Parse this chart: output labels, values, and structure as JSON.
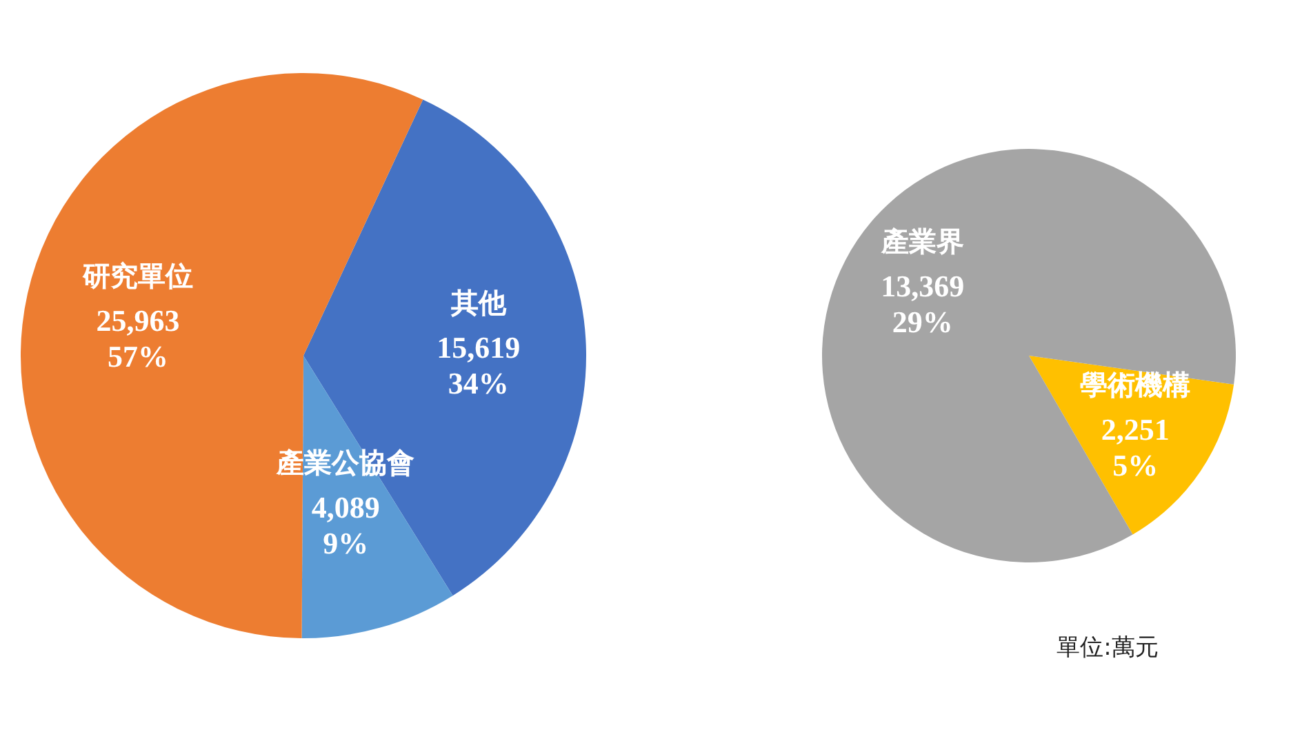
{
  "chart_data": [
    {
      "type": "pie",
      "categories": [
        "其他",
        "產業公協會",
        "研究單位"
      ],
      "values": [
        15619,
        4089,
        25963
      ],
      "colors": [
        "#4472c4",
        "#5b9bd5",
        "#ed7d31"
      ],
      "value_labels": [
        "15,619\n34%",
        "4,089\n9%",
        "25,963\n57%"
      ],
      "legend": false
    },
    {
      "type": "pie",
      "categories": [
        "學術機構",
        "產業界"
      ],
      "values": [
        2251,
        13369
      ],
      "colors": [
        "#ffc000",
        "#a5a5a5"
      ],
      "value_labels": [
        "2,251\n5%",
        "13,369\n29%"
      ],
      "legend": false,
      "annotations": [
        "單位:萬元"
      ]
    }
  ]
}
